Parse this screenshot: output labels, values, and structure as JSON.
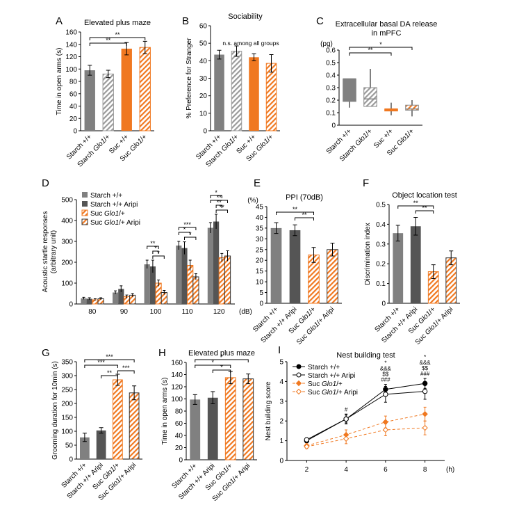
{
  "colors": {
    "starch": "#808080",
    "starchDark": "#555555",
    "suc": "#f07820",
    "hatchGray": "#9a9a9a",
    "hatchOrange": "#f07820",
    "axis": "#000000"
  },
  "chart_data": [
    {
      "panel": "A",
      "type": "bar",
      "title": "Elevated plus maze",
      "ylabel": "Time in open arms (s)",
      "ylim": [
        0,
        160
      ],
      "yticks": [
        0,
        20,
        40,
        60,
        80,
        100,
        120,
        140,
        160
      ],
      "categories": [
        "Starch +/+",
        "Starch Glo1/+",
        "Suc +/+",
        "Suc Glo1/+"
      ],
      "values": [
        98,
        92,
        133,
        135
      ],
      "errors": [
        8,
        6,
        10,
        10
      ],
      "styles": [
        "solid-gray",
        "hatch-gray",
        "solid-orange",
        "hatch-orange"
      ],
      "sig": [
        {
          "a": 0,
          "b": 2,
          "label": "**"
        },
        {
          "a": 0,
          "b": 3,
          "label": "**"
        }
      ]
    },
    {
      "panel": "B",
      "type": "bar",
      "title": "Sociability",
      "ylabel": "% Preference for Stranger",
      "ylim": [
        0,
        60
      ],
      "yticks": [
        0,
        10,
        20,
        30,
        40,
        50,
        60
      ],
      "categories": [
        "Starch +/+",
        "Starch Glo1/+",
        "Suc +/+",
        "Suc Glo1/+"
      ],
      "values": [
        43.5,
        45.5,
        42,
        38.5
      ],
      "errors": [
        2.5,
        3,
        2,
        5
      ],
      "styles": [
        "solid-gray",
        "hatch-gray",
        "solid-orange",
        "hatch-orange"
      ],
      "annotation": "n.s. among all groups"
    },
    {
      "panel": "C",
      "type": "box",
      "title": "Extracellular basal DA release",
      "title2": "in mPFC",
      "ylabel": "",
      "unit": "(pg)",
      "ylim": [
        0,
        0.6
      ],
      "yticks": [
        0,
        0.1,
        0.2,
        0.3,
        0.4,
        0.5,
        0.6
      ],
      "categories": [
        "Starch +/+",
        "Starch Glo1/+",
        "Suc +/+",
        "Suc Glo1/+"
      ],
      "boxes": [
        {
          "min": 0.14,
          "q1": 0.19,
          "med": 0.37,
          "q3": 0.37,
          "max": 0.37
        },
        {
          "min": 0.15,
          "q1": 0.15,
          "med": 0.21,
          "q3": 0.3,
          "max": 0.45
        },
        {
          "min": 0.08,
          "q1": 0.12,
          "med": 0.13,
          "q3": 0.13,
          "max": 0.18
        },
        {
          "min": 0.07,
          "q1": 0.12,
          "med": 0.13,
          "q3": 0.16,
          "max": 0.2
        }
      ],
      "styles": [
        "solid-gray",
        "hatch-gray",
        "solid-orange",
        "hatch-orange"
      ],
      "sig": [
        {
          "a": 0,
          "b": 2,
          "label": "**"
        },
        {
          "a": 0,
          "b": 3,
          "label": "*"
        }
      ]
    },
    {
      "panel": "D",
      "type": "grouped-bar",
      "title": "",
      "ylabel": "Acoustic startle responses",
      "ylabel2": "(arbitrary unit)",
      "ylim": [
        0,
        500
      ],
      "yticks": [
        0,
        100,
        200,
        300,
        400,
        500
      ],
      "categories": [
        "80",
        "90",
        "100",
        "110",
        "120"
      ],
      "xunit": "(dB)",
      "legend": [
        "Starch +/+",
        "Starch +/+ Aripi",
        "Suc Glo1/+",
        "Suc Glo1/+ Aripi"
      ],
      "series": [
        {
          "name": "Starch +/+",
          "style": "solid-gray",
          "values": [
            27,
            55,
            190,
            280,
            365
          ],
          "errors": [
            5,
            8,
            20,
            20,
            25
          ]
        },
        {
          "name": "Starch +/+ Aripi",
          "style": "solid-dark",
          "values": [
            25,
            72,
            180,
            268,
            395
          ],
          "errors": [
            5,
            15,
            30,
            30,
            35
          ]
        },
        {
          "name": "Suc Glo1/+",
          "style": "hatch-orange",
          "values": [
            20,
            35,
            100,
            185,
            222
          ],
          "errors": [
            5,
            8,
            15,
            25,
            20
          ]
        },
        {
          "name": "Suc Glo1/+ Aripi",
          "style": "hatch-dark-orange",
          "values": [
            25,
            42,
            55,
            130,
            230
          ],
          "errors": [
            5,
            8,
            10,
            15,
            25
          ]
        }
      ],
      "sigGroups": [
        [
          "**",
          "*",
          "*"
        ],
        [
          "***",
          "*",
          "*"
        ],
        [
          "*",
          "**",
          "**",
          "**"
        ]
      ]
    },
    {
      "panel": "E",
      "type": "bar",
      "title": "PPI (70dB)",
      "ylabel": "",
      "unit": "(%)",
      "ylim": [
        0,
        45
      ],
      "yticks": [
        0,
        5,
        10,
        15,
        20,
        25,
        30,
        35,
        40,
        45
      ],
      "categories": [
        "Starch +/+",
        "Starch +/+ Aripi",
        "Suc Glo1/+",
        "Suc Glo1/+ Aripi"
      ],
      "values": [
        35,
        34,
        22.5,
        25
      ],
      "errors": [
        2.5,
        2.5,
        3.5,
        3
      ],
      "styles": [
        "solid-gray",
        "solid-dark",
        "hatch-orange",
        "hatch-dark-orange"
      ],
      "sig": [
        {
          "a": 0,
          "b": 2,
          "label": "**"
        },
        {
          "a": 1,
          "b": 2,
          "label": "**"
        }
      ]
    },
    {
      "panel": "F",
      "type": "bar",
      "title": "Object location test",
      "ylabel": "Discrimination index",
      "ylim": [
        0,
        0.5
      ],
      "yticks": [
        0,
        0.1,
        0.2,
        0.3,
        0.4,
        0.5
      ],
      "categories": [
        "Starch +/+",
        "Starch +/+ Aripi",
        "Suc Glo1/+",
        "Suc Glo1/+ Aripi"
      ],
      "values": [
        0.355,
        0.39,
        0.16,
        0.23
      ],
      "errors": [
        0.04,
        0.045,
        0.035,
        0.035
      ],
      "styles": [
        "solid-gray",
        "solid-dark",
        "hatch-orange",
        "hatch-dark-orange"
      ],
      "sig": [
        {
          "a": 0,
          "b": 2,
          "label": "**"
        },
        {
          "a": 1,
          "b": 2,
          "label": "**"
        }
      ]
    },
    {
      "panel": "G",
      "type": "bar",
      "title": "",
      "ylabel": "Grooming duration for 10min (s)",
      "ylim": [
        0,
        350
      ],
      "yticks": [
        0,
        50,
        100,
        150,
        200,
        250,
        300,
        350
      ],
      "categories": [
        "Starch +/+",
        "Starch +/+ Aripi",
        "Suc Glo1/+",
        "Suc Glo1/+ Aripi"
      ],
      "values": [
        78,
        103,
        285,
        238
      ],
      "errors": [
        15,
        10,
        20,
        25
      ],
      "styles": [
        "solid-gray",
        "solid-dark",
        "hatch-orange",
        "hatch-dark-orange"
      ],
      "sig": [
        {
          "a": 0,
          "b": 3,
          "label": "***"
        },
        {
          "a": 0,
          "b": 2,
          "label": "***"
        },
        {
          "a": 1,
          "b": 2,
          "label": "**"
        },
        {
          "a": 2,
          "b": 3,
          "label": "***"
        }
      ]
    },
    {
      "panel": "H",
      "type": "bar",
      "title": "Elevated plus maze",
      "ylabel": "Time in open arms (s)",
      "ylim": [
        0,
        160
      ],
      "yticks": [
        0,
        20,
        40,
        60,
        80,
        100,
        120,
        140,
        160
      ],
      "categories": [
        "Starch +/+",
        "Starch +/+ Aripi",
        "Suc Glo1/+",
        "Suc Glo1/+ Aripi"
      ],
      "values": [
        99,
        102,
        135,
        133
      ],
      "errors": [
        8,
        10,
        10,
        8
      ],
      "styles": [
        "solid-gray",
        "solid-dark",
        "hatch-orange",
        "hatch-dark-orange"
      ],
      "sig": [
        {
          "a": 0,
          "b": 3,
          "label": "*"
        },
        {
          "a": 0,
          "b": 2,
          "label": "*"
        },
        {
          "a": 1,
          "b": 2,
          "label": "*"
        }
      ]
    },
    {
      "panel": "I",
      "type": "line",
      "title": "Nest building test",
      "ylabel": "Nest building score",
      "ylim": [
        0,
        5
      ],
      "yticks": [
        0,
        1,
        2,
        3,
        4,
        5
      ],
      "x": [
        2,
        4,
        6,
        8
      ],
      "xunit": "(h)",
      "series": [
        {
          "name": "Starch +/+",
          "style": "solid-filled",
          "values": [
            1.0,
            2.1,
            3.6,
            3.9
          ],
          "errors": [
            0.1,
            0.2,
            0.25,
            0.25
          ]
        },
        {
          "name": "Starch +/+ Aripi",
          "style": "solid-open",
          "values": [
            1.05,
            2.1,
            3.35,
            3.5
          ],
          "errors": [
            0.1,
            0.25,
            0.4,
            0.4
          ]
        },
        {
          "name": "Suc Glo1/+",
          "style": "dashed-filled",
          "values": [
            0.75,
            1.3,
            1.95,
            2.35
          ],
          "errors": [
            0.1,
            0.25,
            0.3,
            0.35
          ]
        },
        {
          "name": "Suc Glo1/+ Aripi",
          "style": "dashed-open",
          "values": [
            0.7,
            1.1,
            1.55,
            1.65
          ],
          "errors": [
            0.1,
            0.25,
            0.3,
            0.35
          ]
        }
      ],
      "annotations": [
        {
          "x": 4,
          "lines": [
            "#"
          ]
        },
        {
          "x": 6,
          "lines": [
            "*",
            "&&&",
            "$$",
            "###"
          ]
        },
        {
          "x": 8,
          "lines": [
            "*",
            "&&&",
            "$$",
            "###"
          ]
        }
      ]
    }
  ]
}
